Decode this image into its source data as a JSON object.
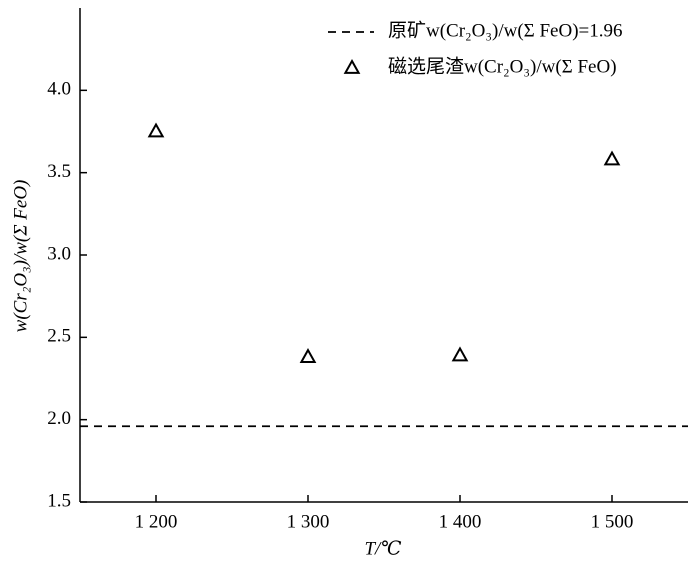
{
  "chart_data": {
    "type": "scatter",
    "x_label": "T/℃",
    "y_label": "w(Cr₂O₃)/w(Σ FeO)",
    "xlim": [
      1150,
      1550
    ],
    "ylim": [
      1.5,
      4.5
    ],
    "xticks": [
      {
        "value": 1200,
        "label": "1 200"
      },
      {
        "value": 1300,
        "label": "1 300"
      },
      {
        "value": 1400,
        "label": "1 400"
      },
      {
        "value": 1500,
        "label": "1 500"
      }
    ],
    "yticks": [
      1.5,
      {
        "value": 2.0,
        "label": "2.0"
      },
      2.5,
      {
        "value": 3.0,
        "label": "3.0"
      },
      3.5,
      {
        "value": 4.0,
        "label": "4.0"
      }
    ],
    "reference_line": {
      "name": "原矿w(Cr₂O₃)/w(Σ FeO)=1.96",
      "value": 1.96,
      "color": "#000000",
      "style": "dashed"
    },
    "legend": "top-right",
    "series": [
      {
        "name": "磁选尾渣w(Cr₂O₃)/w(Σ FeO)",
        "color": "#000000",
        "marker": "triangle",
        "x": [
          1200,
          1300,
          1400,
          1500
        ],
        "values": [
          3.75,
          2.38,
          2.39,
          3.58
        ]
      }
    ]
  }
}
